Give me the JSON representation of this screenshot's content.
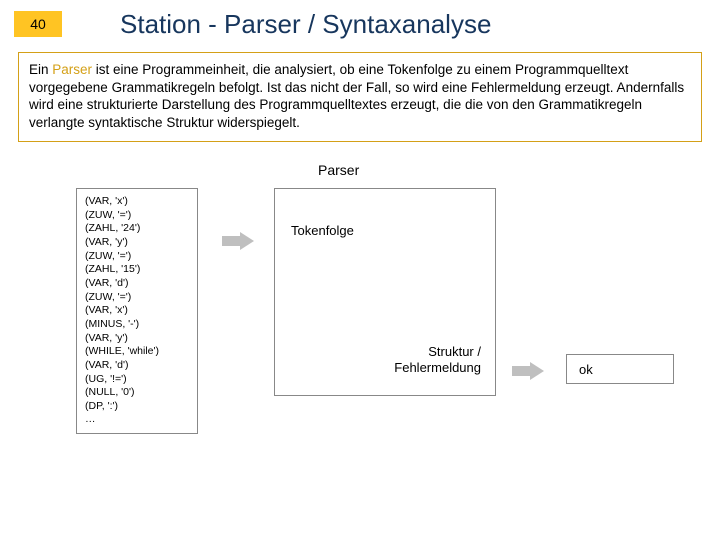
{
  "header": {
    "page_number": "40",
    "title": "Station - Parser / Syntaxanalyse"
  },
  "description": {
    "prefix": "Ein ",
    "parser_word": "Parser",
    "rest": " ist eine Programmeinheit, die analysiert, ob eine Tokenfolge zu einem Programmquelltext vorgegebene Grammatikregeln befolgt. Ist das nicht der Fall, so wird eine Fehlermeldung erzeugt. Andernfalls wird eine strukturierte Darstellung des Programmquelltextes erzeugt, die die von den Grammatikregeln verlangte syntaktische Struktur widerspiegelt."
  },
  "diagram": {
    "parser_label": "Parser",
    "tokens": [
      "(VAR, 'x')",
      "(ZUW, '=')",
      "(ZAHL, '24')",
      "(VAR, 'y')",
      "(ZUW, '=')",
      "(ZAHL, '15')",
      "(VAR, 'd')",
      "(ZUW, '=')",
      "(VAR, 'x')",
      "(MINUS, '-')",
      "(VAR, 'y')",
      "(WHILE, 'while')",
      "(VAR, 'd')",
      "(UG, '!=')",
      "(NULL, '0')",
      "(DP, ':')",
      "…"
    ],
    "tokenfolge_label": "Tokenfolge",
    "struktur_line1": "Struktur /",
    "struktur_line2": "Fehlermeldung",
    "ok_label": "ok"
  },
  "colors": {
    "page_num_bg": "#ffc423",
    "title_color": "#17365d",
    "desc_border": "#d4a017",
    "parser_word_color": "#d4a017",
    "box_border": "#888888",
    "arrow_color": "#bfbfbf"
  }
}
